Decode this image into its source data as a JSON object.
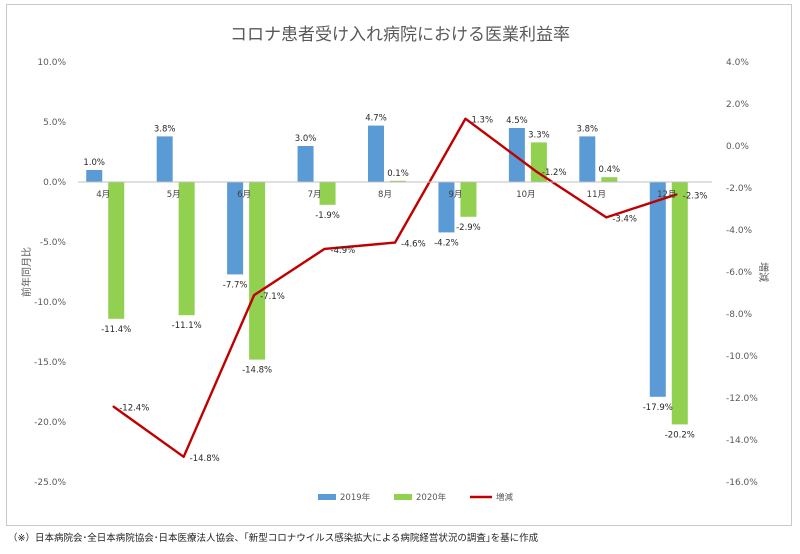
{
  "chart_data": {
    "type": "bar+line",
    "title": "コロナ患者受け入れ病院における医業利益率",
    "categories": [
      "4月",
      "5月",
      "6月",
      "7月",
      "8月",
      "9月",
      "10月",
      "11月",
      "12月"
    ],
    "ylabel_left": "前年同月比",
    "ylabel_right": "増減",
    "left_axis": {
      "min": -25,
      "max": 10,
      "step": 5,
      "tick_labels": [
        "10.0%",
        "5.0%",
        "0.0%",
        "-5.0%",
        "-10.0%",
        "-15.0%",
        "-20.0%",
        "-25.0%"
      ]
    },
    "right_axis": {
      "min": -16,
      "max": 4,
      "step": 2,
      "tick_labels": [
        "4.0%",
        "2.0%",
        "0.0%",
        "-2.0%",
        "-4.0%",
        "-6.0%",
        "-8.0%",
        "-10.0%",
        "-12.0%",
        "-14.0%",
        "-16.0%"
      ]
    },
    "series": [
      {
        "name": "2019年",
        "type": "bar",
        "axis": "left",
        "color": "#5b9bd5",
        "values": [
          1.0,
          3.8,
          -7.7,
          3.0,
          4.7,
          -4.2,
          4.5,
          3.8,
          -17.9
        ],
        "labels": [
          "1.0%",
          "3.8%",
          "-7.7%",
          "3.0%",
          "4.7%",
          "-4.2%",
          "4.5%",
          "3.8%",
          "-17.9%"
        ]
      },
      {
        "name": "2020年",
        "type": "bar",
        "axis": "left",
        "color": "#92d050",
        "values": [
          -11.4,
          -11.1,
          -14.8,
          -1.9,
          0.1,
          -2.9,
          3.3,
          0.4,
          -20.2
        ],
        "labels": [
          "-11.4%",
          "-11.1%",
          "-14.8%",
          "-1.9%",
          "0.1%",
          "-2.9%",
          "3.3%",
          "0.4%",
          "-20.2%"
        ]
      },
      {
        "name": "増減",
        "type": "line",
        "axis": "right",
        "color": "#c00000",
        "values": [
          -12.4,
          -14.8,
          -7.1,
          -4.9,
          -4.6,
          1.3,
          -1.2,
          -3.4,
          -2.3
        ],
        "labels": [
          "-12.4%",
          "-14.8%",
          "-7.1%",
          "-4.9%",
          "-4.6%",
          "1.3%",
          "-1.2%",
          "-3.4%",
          "-2.3%"
        ]
      }
    ],
    "legend_position": "bottom"
  },
  "source_note": "（※）日本病院会･全日本病院協会･日本医療法人協会、｢新型コロナウイルス感染拡大による病院経営状況の調査｣を基に作成"
}
